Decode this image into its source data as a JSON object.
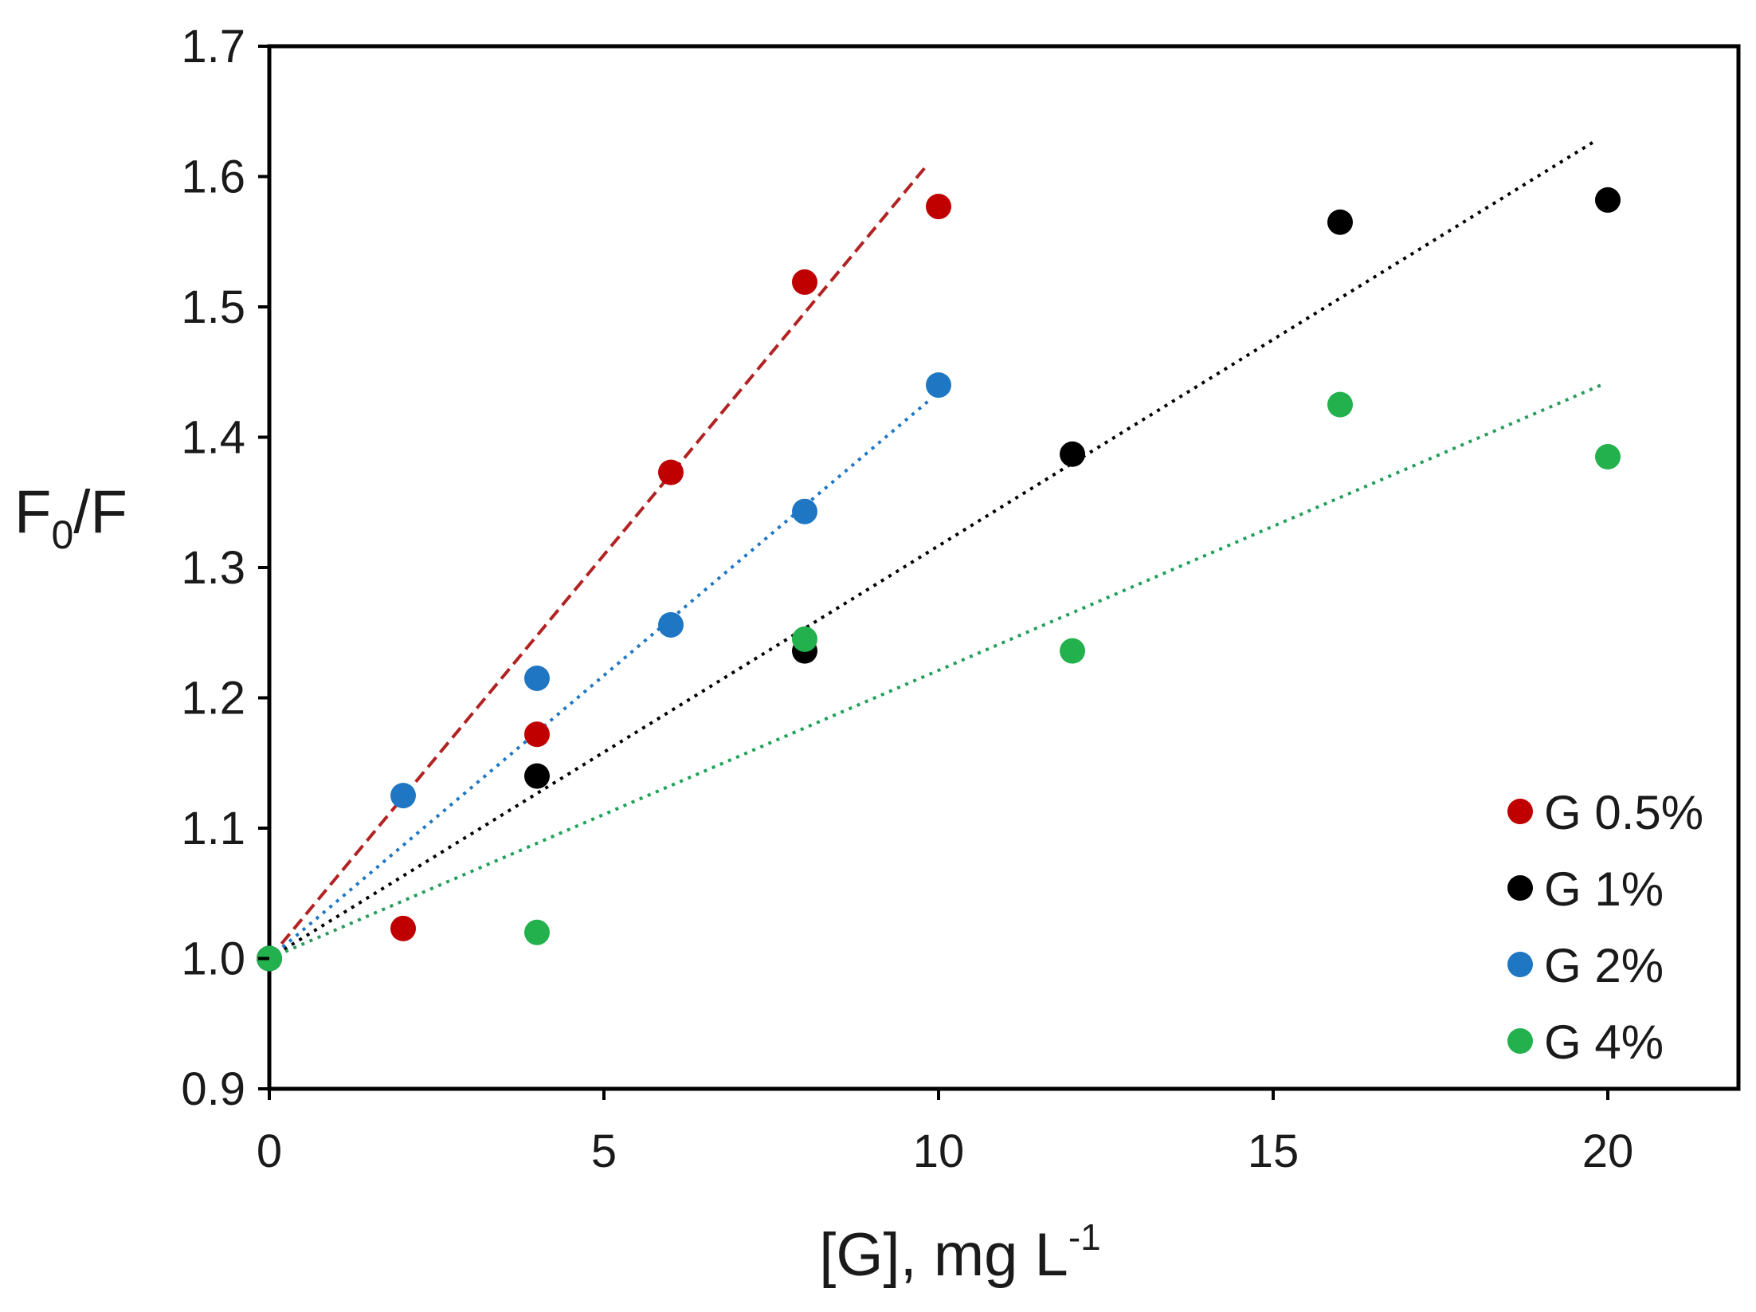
{
  "chart_data": {
    "type": "scatter",
    "title": "",
    "xlabel_main": "[G], mg L",
    "xlabel_sup": "-1",
    "ylabel_main": "F",
    "ylabel_sub": "0",
    "ylabel_tail": "/F",
    "xlim": [
      0,
      22
    ],
    "ylim": [
      0.9,
      1.7
    ],
    "xticks": [
      0,
      5,
      10,
      15,
      20
    ],
    "xtick_labels": [
      "0",
      "5",
      "10",
      "15",
      "20"
    ],
    "yticks": [
      0.9,
      1.0,
      1.1,
      1.2,
      1.3,
      1.4,
      1.5,
      1.6,
      1.7
    ],
    "ytick_labels": [
      "0.9",
      "1.0",
      "1.1",
      "1.2",
      "1.3",
      "1.4",
      "1.5",
      "1.6",
      "1.7"
    ],
    "legend_position": "bottom-right",
    "series": [
      {
        "name": "G 0.5%",
        "color": "#c00000",
        "x": [
          0,
          2,
          4,
          6,
          8,
          10
        ],
        "y": [
          1.0,
          1.023,
          1.172,
          1.373,
          1.519,
          1.577
        ],
        "trendline": {
          "style": "dashed",
          "color": "#b22222",
          "x": [
            0,
            9.8
          ],
          "y": [
            1.0,
            1.607
          ]
        }
      },
      {
        "name": "G 1%",
        "color": "#000000",
        "x": [
          0,
          4,
          8,
          12,
          16,
          20
        ],
        "y": [
          1.0,
          1.14,
          1.236,
          1.387,
          1.565,
          1.582
        ],
        "trendline": {
          "style": "dotted",
          "color": "#000000",
          "x": [
            0,
            19.8
          ],
          "y": [
            1.0,
            1.627
          ]
        }
      },
      {
        "name": "G 2%",
        "color": "#1f77c4",
        "x": [
          0,
          2,
          4,
          6,
          8,
          10
        ],
        "y": [
          1.0,
          1.125,
          1.215,
          1.256,
          1.343,
          1.44
        ],
        "trendline": {
          "style": "dotted",
          "color": "#1f77c4",
          "x": [
            0,
            9.9
          ],
          "y": [
            1.0,
            1.43
          ]
        }
      },
      {
        "name": "G 4%",
        "color": "#22b14c",
        "x": [
          0,
          4,
          8,
          12,
          16,
          20
        ],
        "y": [
          1.0,
          1.02,
          1.245,
          1.236,
          1.425,
          1.385
        ],
        "trendline": {
          "style": "dotted",
          "color": "#22a05a",
          "x": [
            0,
            19.9
          ],
          "y": [
            1.0,
            1.44
          ]
        }
      }
    ]
  }
}
